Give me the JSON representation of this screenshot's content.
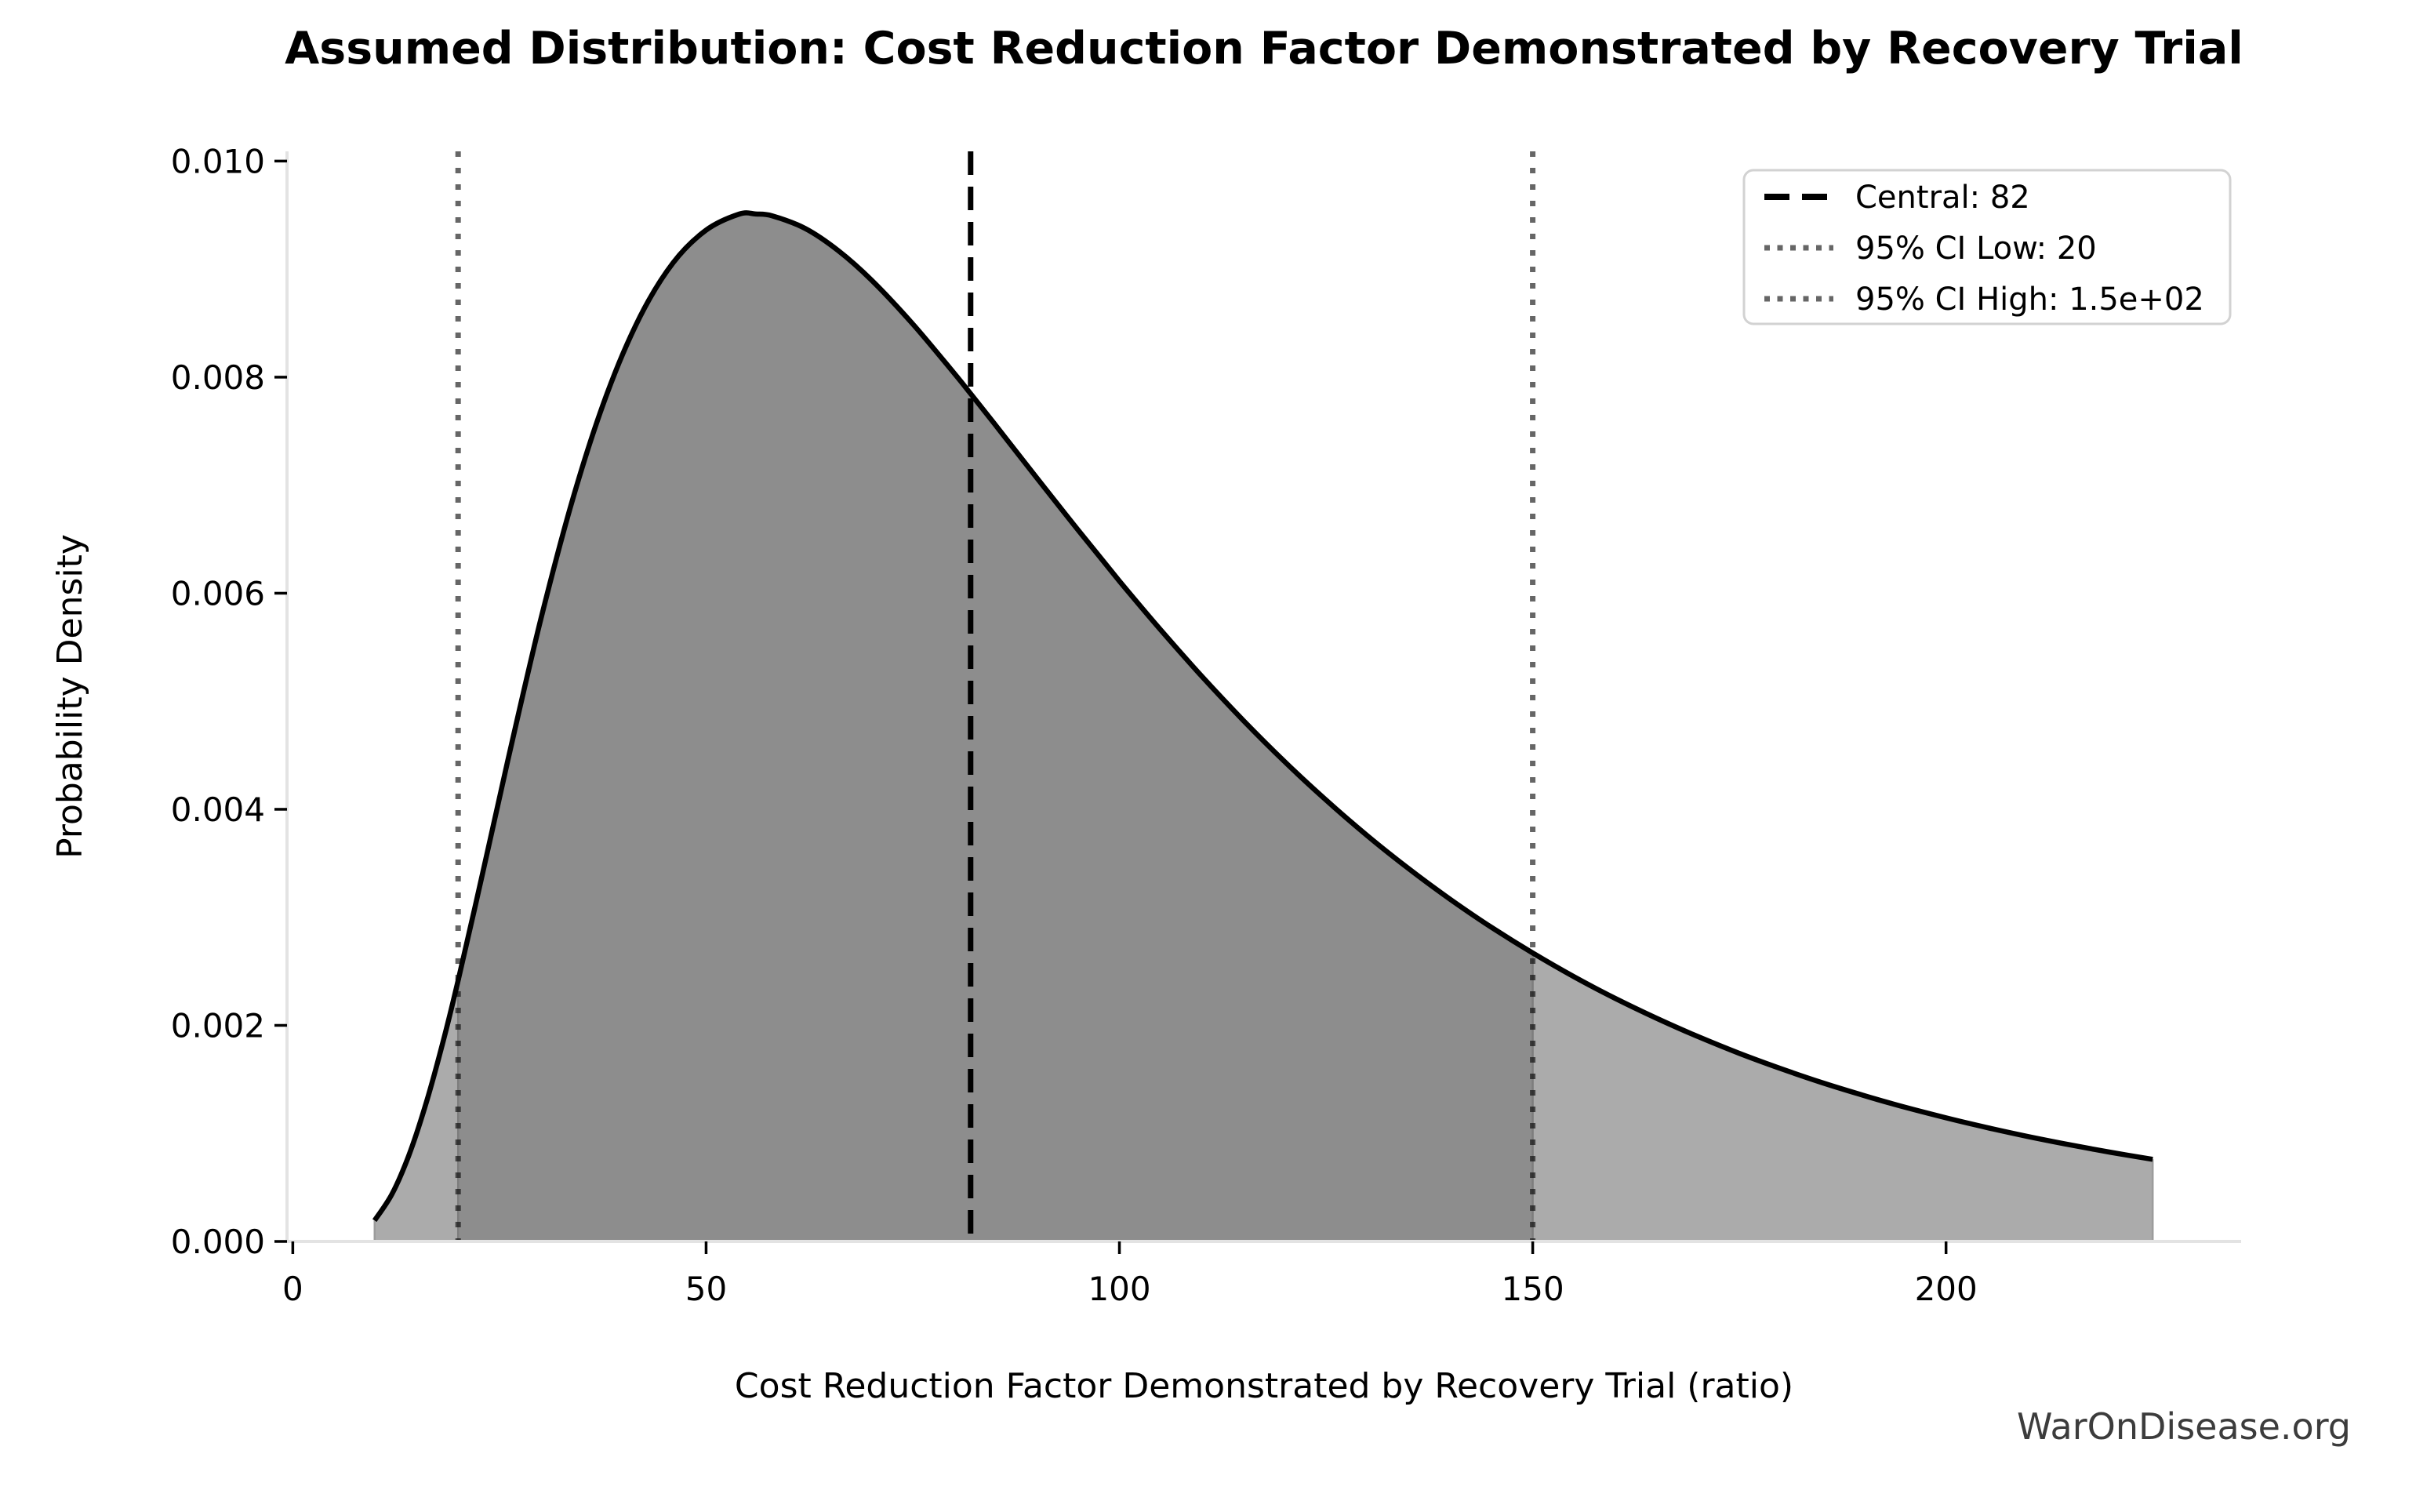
{
  "chart": {
    "title": "Assumed Distribution: Cost Reduction Factor Demonstrated by Recovery Trial",
    "xlabel": "Cost Reduction Factor Demonstrated by Recovery Trial (ratio)",
    "ylabel": "Probability Density",
    "watermark": "WarOnDisease.org"
  },
  "chart_data": {
    "type": "area",
    "title": "Assumed Distribution: Cost Reduction Factor Demonstrated by Recovery Trial",
    "xlabel": "Cost Reduction Factor Demonstrated by Recovery Trial (ratio)",
    "ylabel": "Probability Density",
    "grid": false,
    "xlim": [
      -0.7,
      235.7
    ],
    "ylim": [
      0,
      0.01009
    ],
    "x_ticks": [
      {
        "value": 0,
        "label": "0"
      },
      {
        "value": 50,
        "label": "50"
      },
      {
        "value": 100,
        "label": "100"
      },
      {
        "value": 150,
        "label": "150"
      },
      {
        "value": 200,
        "label": "200"
      }
    ],
    "y_ticks": [
      {
        "value": 0.0,
        "label": "0.000"
      },
      {
        "value": 0.002,
        "label": "0.002"
      },
      {
        "value": 0.004,
        "label": "0.004"
      },
      {
        "value": 0.006,
        "label": "0.006"
      },
      {
        "value": 0.008,
        "label": "0.008"
      },
      {
        "value": 0.01,
        "label": "0.010"
      }
    ],
    "markers": {
      "central": 82,
      "ci_low": 20,
      "ci_high": 150
    },
    "fill": {
      "full_range": [
        9.9,
        225
      ],
      "ci_range": [
        20,
        150
      ]
    },
    "curve": {
      "x": [
        9.9,
        12,
        14,
        16,
        18,
        20,
        23,
        26,
        30,
        34,
        38,
        42,
        46,
        50,
        54,
        56,
        58,
        62,
        66,
        70,
        75,
        80,
        82,
        85,
        90,
        95,
        100,
        105,
        110,
        115,
        120,
        125,
        130,
        135,
        140,
        145,
        150,
        155,
        160,
        165,
        170,
        175,
        180,
        185,
        190,
        195,
        200,
        205,
        210,
        215,
        220,
        225
      ],
      "pdf": [
        0.000194,
        0.000439,
        0.000789,
        0.001247,
        0.001796,
        0.002414,
        0.003419,
        0.004449,
        0.005758,
        0.006906,
        0.007845,
        0.008559,
        0.009058,
        0.009361,
        0.009509,
        0.00951,
        0.009493,
        0.009376,
        0.00917,
        0.008899,
        0.008492,
        0.008037,
        0.007847,
        0.007557,
        0.007069,
        0.006585,
        0.006113,
        0.00566,
        0.005229,
        0.004822,
        0.00444,
        0.004085,
        0.003755,
        0.00345,
        0.003168,
        0.002908,
        0.00267,
        0.00245,
        0.002249,
        0.002065,
        0.001896,
        0.001741,
        0.0016,
        0.00147,
        0.001352,
        0.001243,
        0.001144,
        0.001053,
        0.00097,
        0.000894,
        0.000824,
        0.00076
      ]
    },
    "legend": {
      "position": "upper right",
      "items": [
        {
          "label": "Central: 82",
          "style": "dashed",
          "color": "#000000",
          "opacity": 1.0
        },
        {
          "label": "95% CI Low: 20",
          "style": "dotted",
          "color": "#000000",
          "opacity": 0.6
        },
        {
          "label": "95% CI High: 1.5e+02",
          "style": "dotted",
          "color": "#000000",
          "opacity": 0.6
        }
      ]
    },
    "colors": {
      "curve_line": "#000000",
      "fill_light": "#ababab",
      "fill_dark": "#8d8d8d",
      "fill_edge": "#9c9c9c",
      "ci_fill_edge": "#7d7d7d",
      "central_line": "#000000",
      "ci_line": "#000000",
      "spine": "#e3e3e3",
      "tick": "#000000",
      "legend_border": "#d2d2d2",
      "legend_bg": "#ffffff",
      "watermark": "#3c3c3c"
    }
  }
}
